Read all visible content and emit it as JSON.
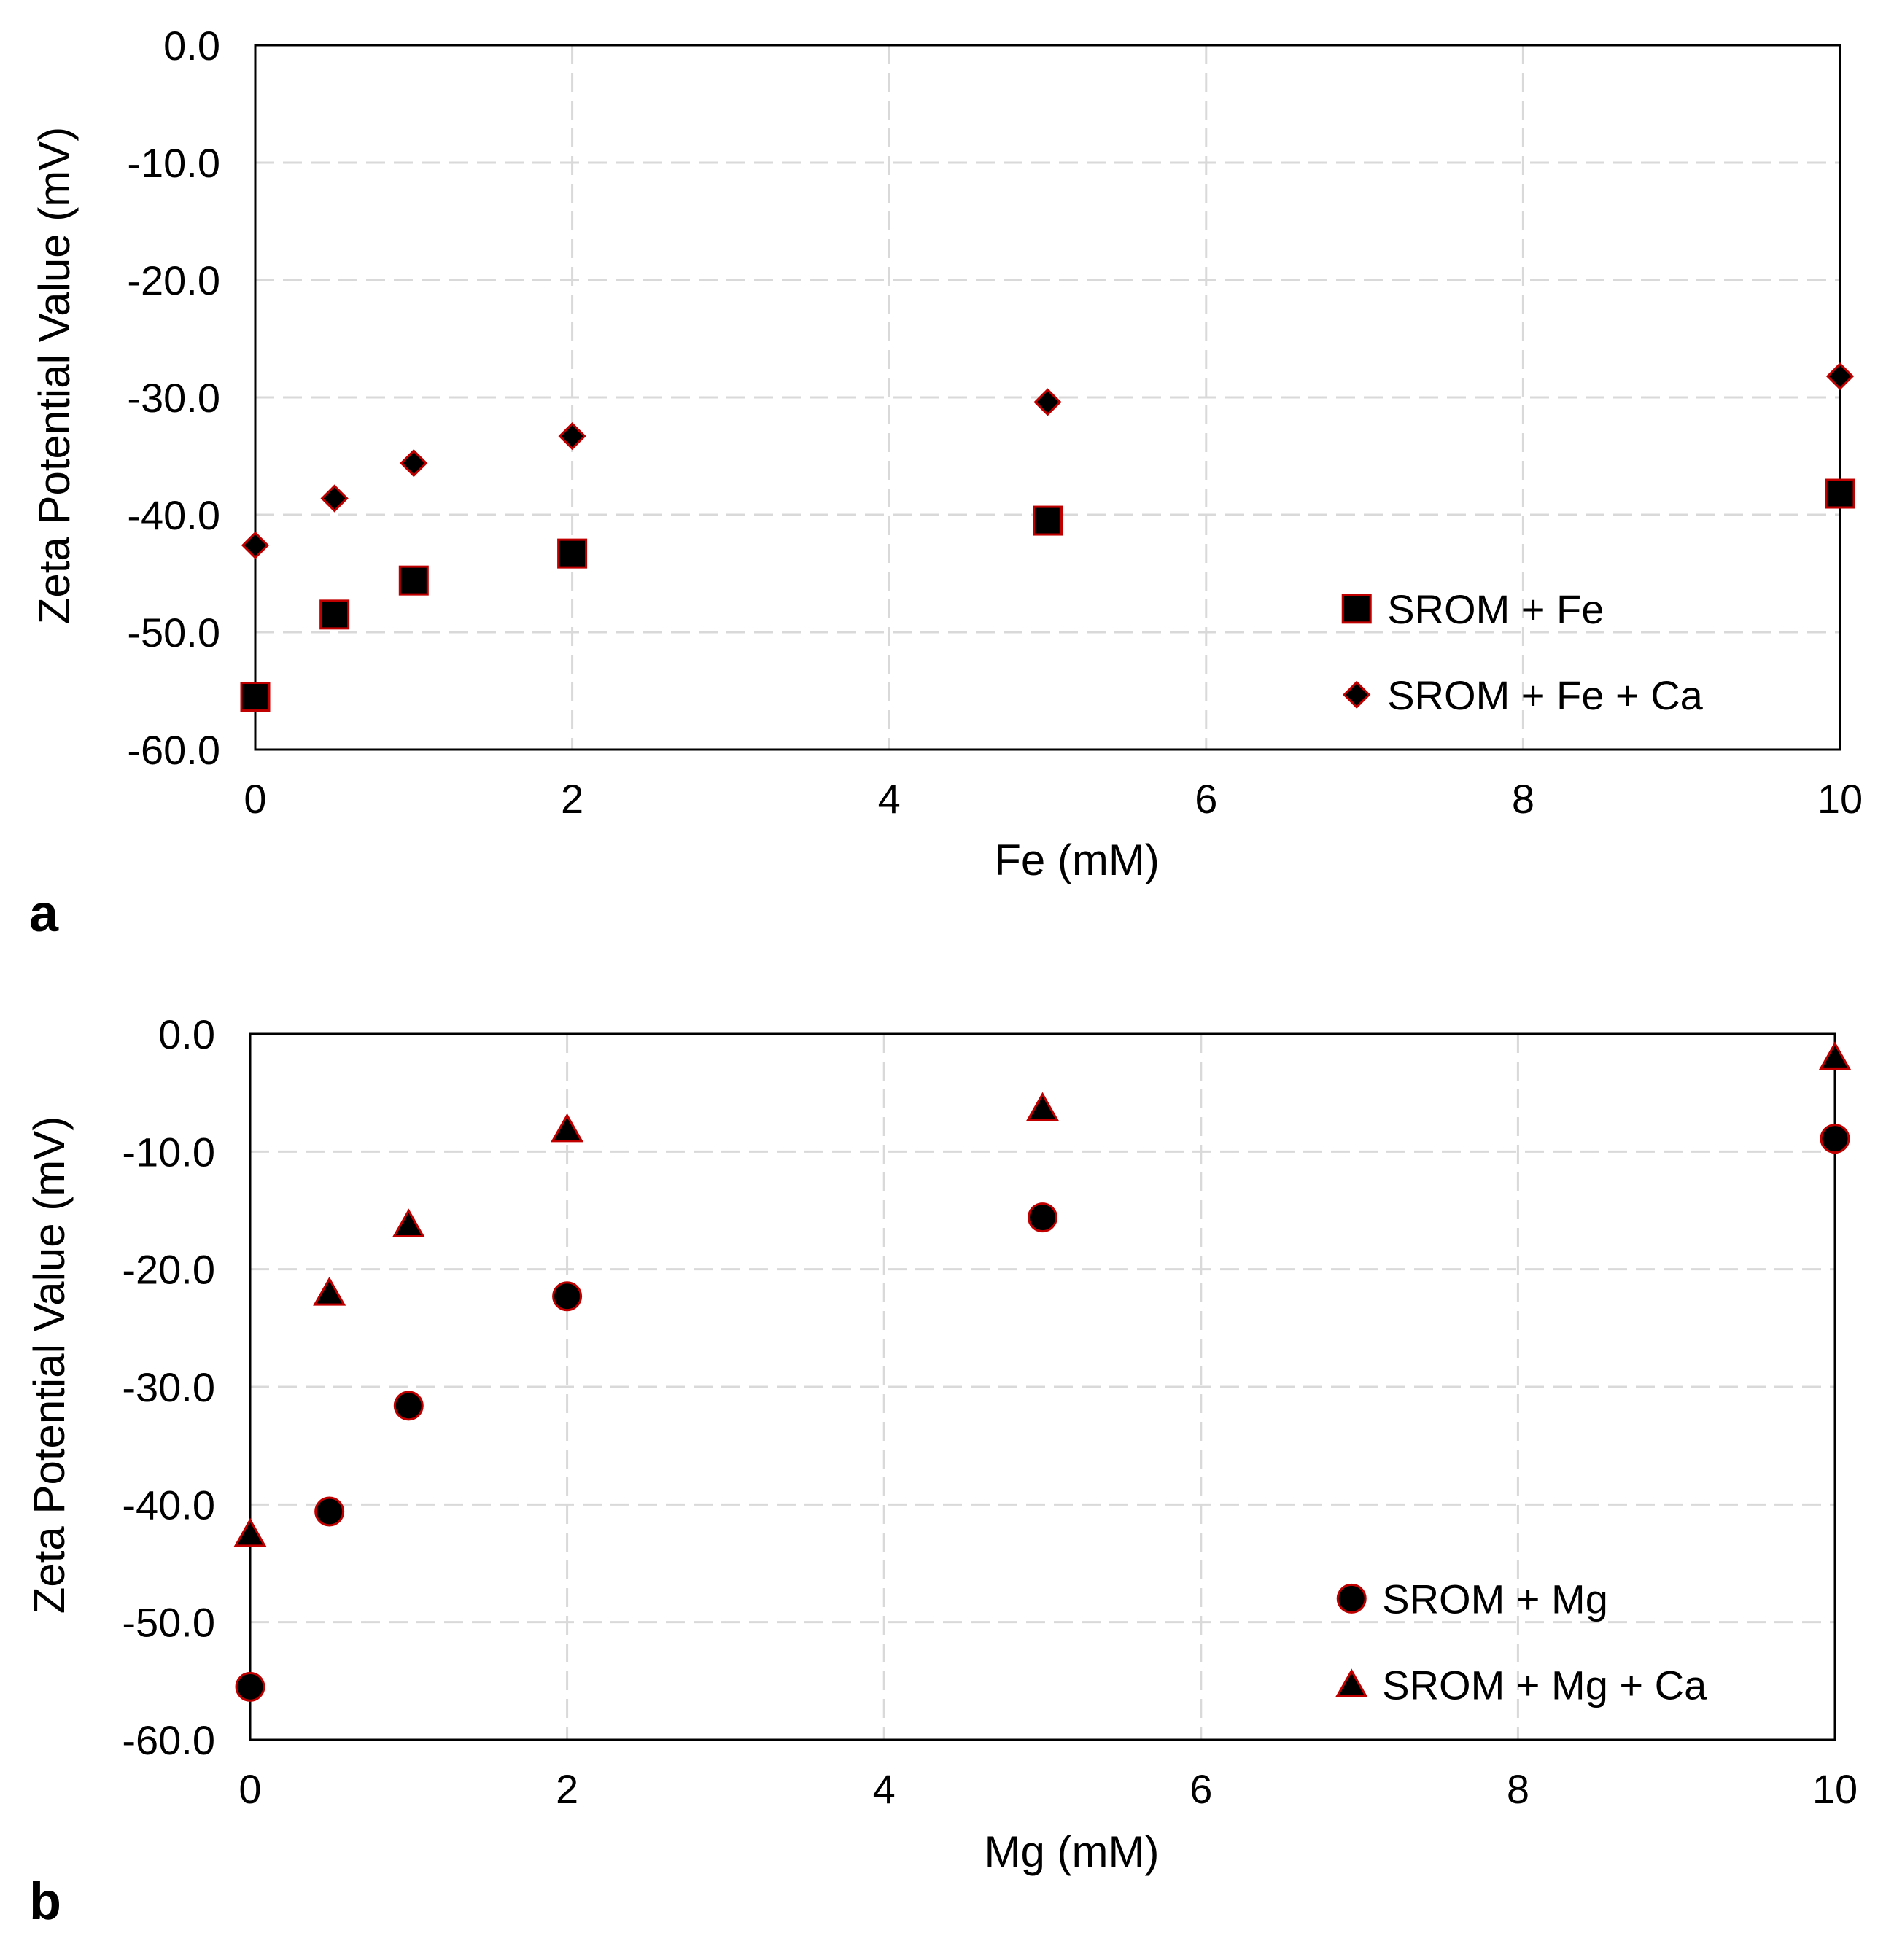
{
  "chart_data": [
    {
      "type": "scatter",
      "panel_label": "a",
      "xlabel": "Fe (mM)",
      "ylabel": "Zeta Potential Value (mV)",
      "xlim": [
        0,
        10
      ],
      "ylim": [
        -60,
        0
      ],
      "xticks": [
        0,
        2,
        4,
        6,
        8,
        10
      ],
      "yticks": [
        0,
        -10,
        -20,
        -30,
        -40,
        -50,
        -60
      ],
      "ytick_labels": [
        "0.0",
        "-10.0",
        "-20.0",
        "-30.0",
        "-40.0",
        "-50.0",
        "-60.0"
      ],
      "grid": true,
      "legend_position": "bottom-right",
      "series": [
        {
          "name": "SROM + Fe",
          "marker": "square",
          "fill": "#000000",
          "edge": "#c00000",
          "x": [
            0,
            0.5,
            1,
            2,
            5,
            10
          ],
          "y": [
            -55.5,
            -48.5,
            -45.6,
            -43.3,
            -40.5,
            -38.2
          ]
        },
        {
          "name": "SROM + Fe + Ca",
          "marker": "diamond",
          "fill": "#000000",
          "edge": "#c00000",
          "x": [
            0,
            0.5,
            1,
            2,
            5,
            10
          ],
          "y": [
            -42.6,
            -38.6,
            -35.6,
            -33.3,
            -30.4,
            -28.2
          ]
        }
      ]
    },
    {
      "type": "scatter",
      "panel_label": "b",
      "xlabel": "Mg (mM)",
      "ylabel": "Zeta Potential Value (mV)",
      "xlim": [
        0,
        10
      ],
      "ylim": [
        -60,
        0
      ],
      "xticks": [
        0,
        2,
        4,
        6,
        8,
        10
      ],
      "yticks": [
        0,
        -10,
        -20,
        -30,
        -40,
        -50,
        -60
      ],
      "ytick_labels": [
        "0.0",
        "-10.0",
        "-20.0",
        "-30.0",
        "-40.0",
        "-50.0",
        "-60.0"
      ],
      "grid": true,
      "legend_position": "bottom-right",
      "series": [
        {
          "name": "SROM + Mg",
          "marker": "circle",
          "fill": "#000000",
          "edge": "#c00000",
          "x": [
            0,
            0.5,
            1,
            2,
            5,
            10
          ],
          "y": [
            -55.5,
            -40.6,
            -31.6,
            -22.3,
            -15.6,
            -8.9
          ]
        },
        {
          "name": "SROM + Mg + Ca",
          "marker": "triangle",
          "fill": "#000000",
          "edge": "#c00000",
          "x": [
            0,
            0.5,
            1,
            2,
            5,
            10
          ],
          "y": [
            -42.5,
            -22.0,
            -16.2,
            -8.1,
            -6.3,
            -2.0
          ]
        }
      ]
    }
  ]
}
